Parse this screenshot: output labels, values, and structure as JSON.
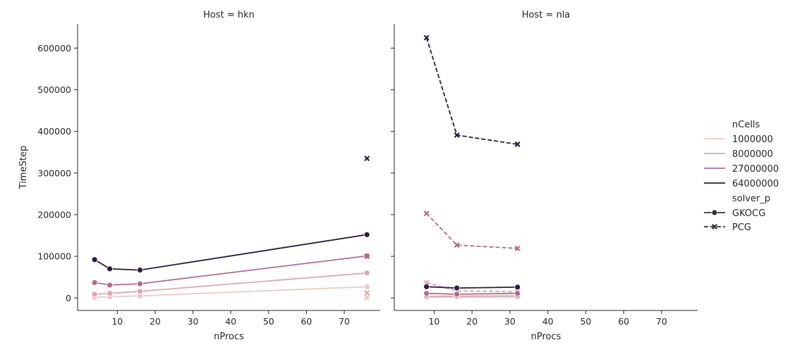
{
  "chart_data": [
    {
      "type": "line",
      "title": "Host = hkn",
      "xlabel": "nProcs",
      "ylabel": "TimeStep",
      "xlim": [
        -0.5,
        79.5
      ],
      "ylim": [
        -30000,
        658000
      ],
      "xticks": [
        10,
        20,
        30,
        40,
        50,
        60,
        70
      ],
      "yticks": [
        0,
        100000,
        200000,
        300000,
        400000,
        500000,
        600000
      ],
      "series": [
        {
          "nCells": "1000000",
          "solver": "GKOCG",
          "x": [
            4,
            8,
            16,
            76
          ],
          "y": [
            1500,
            3000,
            5000,
            27000
          ]
        },
        {
          "nCells": "1000000",
          "solver": "PCG",
          "x": [
            76
          ],
          "y": [
            800
          ]
        },
        {
          "nCells": "8000000",
          "solver": "GKOCG",
          "x": [
            4,
            8,
            16,
            76
          ],
          "y": [
            9000,
            11000,
            16000,
            60000
          ]
        },
        {
          "nCells": "8000000",
          "solver": "PCG",
          "x": [
            76
          ],
          "y": [
            12000
          ]
        },
        {
          "nCells": "27000000",
          "solver": "GKOCG",
          "x": [
            4,
            8,
            16,
            76
          ],
          "y": [
            37000,
            31000,
            34000,
            101000
          ]
        },
        {
          "nCells": "27000000",
          "solver": "PCG",
          "x": [
            76
          ],
          "y": [
            100000
          ]
        },
        {
          "nCells": "64000000",
          "solver": "GKOCG",
          "x": [
            4,
            8,
            16,
            76
          ],
          "y": [
            92000,
            70000,
            67000,
            152000
          ]
        },
        {
          "nCells": "64000000",
          "solver": "PCG",
          "x": [
            76
          ],
          "y": [
            335000
          ]
        }
      ]
    },
    {
      "type": "line",
      "title": "Host = nla",
      "xlabel": "nProcs",
      "ylabel": "",
      "xlim": [
        -0.5,
        79.5
      ],
      "ylim": [
        -30000,
        658000
      ],
      "xticks": [
        10,
        20,
        30,
        40,
        50,
        60,
        70
      ],
      "yticks": [
        0,
        100000,
        200000,
        300000,
        400000,
        500000,
        600000
      ],
      "series": [
        {
          "nCells": "1000000",
          "solver": "GKOCG",
          "x": [
            8,
            16,
            32
          ],
          "y": [
            1500,
            1800,
            2500
          ]
        },
        {
          "nCells": "1000000",
          "solver": "PCG",
          "x": [
            8,
            16,
            32
          ],
          "y": [
            4000,
            3500,
            3000
          ]
        },
        {
          "nCells": "8000000",
          "solver": "GKOCG",
          "x": [
            8,
            16,
            32
          ],
          "y": [
            4000,
            4500,
            5000
          ]
        },
        {
          "nCells": "8000000",
          "solver": "PCG",
          "x": [
            8,
            16,
            32
          ],
          "y": [
            37000,
            17000,
            15000
          ]
        },
        {
          "nCells": "27000000",
          "solver": "GKOCG",
          "x": [
            8,
            16,
            32
          ],
          "y": [
            11000,
            9000,
            11000
          ]
        },
        {
          "nCells": "27000000",
          "solver": "PCG",
          "x": [
            8,
            16,
            32
          ],
          "y": [
            203000,
            127000,
            119000
          ]
        },
        {
          "nCells": "64000000",
          "solver": "GKOCG",
          "x": [
            8,
            16,
            32
          ],
          "y": [
            27000,
            24000,
            26000
          ]
        },
        {
          "nCells": "64000000",
          "solver": "PCG",
          "x": [
            8,
            16,
            32
          ],
          "y": [
            625000,
            391000,
            369000
          ]
        }
      ]
    }
  ],
  "legend": {
    "placement": "right",
    "hue_title": "nCells",
    "hue_entries": [
      {
        "label": "1000000",
        "color": "#ebc9c6"
      },
      {
        "label": "8000000",
        "color": "#dda8b0"
      },
      {
        "label": "27000000",
        "color": "#b26a8f"
      },
      {
        "label": "64000000",
        "color": "#2b1d3f"
      }
    ],
    "style_title": "solver_p",
    "style_entries": [
      {
        "label": "GKOCG",
        "marker": "circle",
        "dash": "solid"
      },
      {
        "label": "PCG",
        "marker": "x",
        "dash": "dashed"
      }
    ]
  }
}
